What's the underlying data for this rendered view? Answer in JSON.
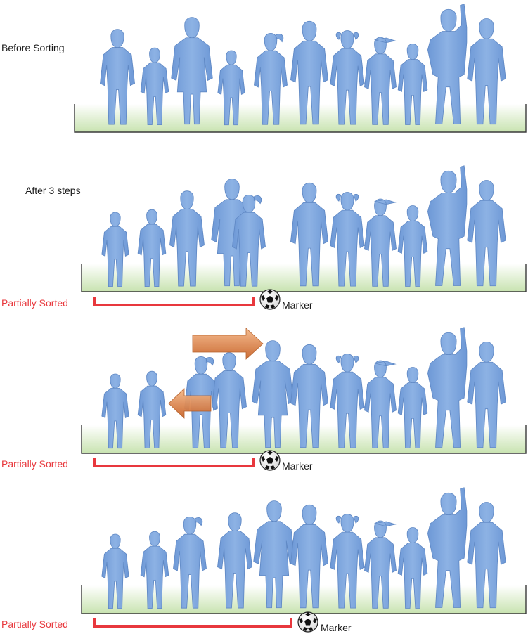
{
  "colors": {
    "silhouette": "#7ea6dc",
    "silhouette_edge": "#5f88c4",
    "grass_top": "#ffffff",
    "grass_bottom": "#c8e3b0",
    "tray": "#3a3a3a",
    "sorted_bar": "#e8383d",
    "sorted_text": "#e8383d",
    "arrow_top": "#f4b98a",
    "arrow_bottom": "#c9642a"
  },
  "panels": [
    {
      "label": "Before Sorting",
      "children": [
        {
          "kind": "boy",
          "h": 146
        },
        {
          "kind": "boy",
          "h": 118
        },
        {
          "kind": "girl",
          "h": 164
        },
        {
          "kind": "boy",
          "h": 114
        },
        {
          "kind": "ponytail",
          "h": 140
        },
        {
          "kind": "boy",
          "h": 158
        },
        {
          "kind": "pigtails",
          "h": 144
        },
        {
          "kind": "cap",
          "h": 134
        },
        {
          "kind": "boy",
          "h": 124
        },
        {
          "kind": "raised",
          "h": 176
        },
        {
          "kind": "boy",
          "h": 162
        }
      ]
    },
    {
      "label": "After 3 steps",
      "sorted_label": "Partially Sorted",
      "marker_label": "Marker",
      "children": [
        {
          "kind": "boy",
          "h": 114
        },
        {
          "kind": "boy",
          "h": 118
        },
        {
          "kind": "boy",
          "h": 146
        },
        {
          "kind": "girl",
          "h": 164
        },
        {
          "kind": "ponytail",
          "h": 140
        },
        {
          "kind": "boy",
          "h": 158
        },
        {
          "kind": "pigtails",
          "h": 144
        },
        {
          "kind": "cap",
          "h": 134
        },
        {
          "kind": "boy",
          "h": 124
        },
        {
          "kind": "raised",
          "h": 176
        },
        {
          "kind": "boy",
          "h": 162
        }
      ]
    },
    {
      "sorted_label": "Partially Sorted",
      "marker_label": "Marker",
      "children": [
        {
          "kind": "boy",
          "h": 114
        },
        {
          "kind": "boy",
          "h": 118
        },
        {
          "kind": "ponytail",
          "h": 140
        },
        {
          "kind": "boy",
          "h": 146
        },
        {
          "kind": "girl",
          "h": 164
        },
        {
          "kind": "boy",
          "h": 158
        },
        {
          "kind": "pigtails",
          "h": 144
        },
        {
          "kind": "cap",
          "h": 134
        },
        {
          "kind": "boy",
          "h": 124
        },
        {
          "kind": "raised",
          "h": 176
        },
        {
          "kind": "boy",
          "h": 162
        }
      ]
    },
    {
      "sorted_label": "Partially Sorted",
      "marker_label": "Marker",
      "children": [
        {
          "kind": "boy",
          "h": 114
        },
        {
          "kind": "boy",
          "h": 118
        },
        {
          "kind": "ponytail",
          "h": 140
        },
        {
          "kind": "boy",
          "h": 146
        },
        {
          "kind": "girl",
          "h": 164
        },
        {
          "kind": "boy",
          "h": 158
        },
        {
          "kind": "pigtails",
          "h": 144
        },
        {
          "kind": "cap",
          "h": 134
        },
        {
          "kind": "boy",
          "h": 124
        },
        {
          "kind": "raised",
          "h": 176
        },
        {
          "kind": "boy",
          "h": 162
        }
      ]
    }
  ]
}
